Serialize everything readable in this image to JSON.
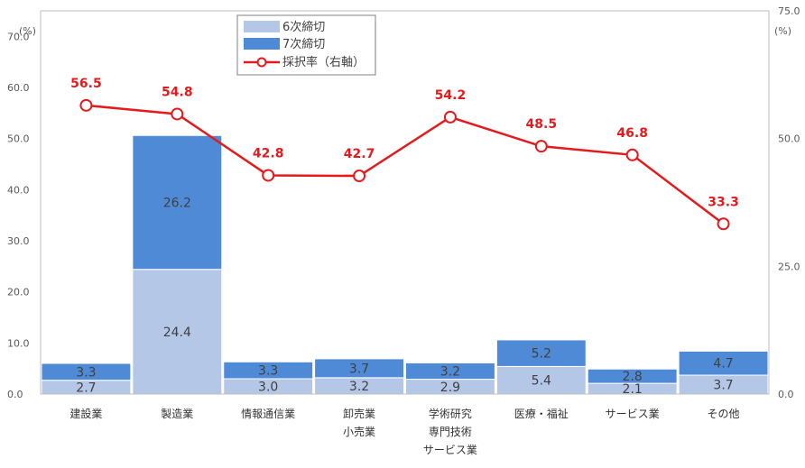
{
  "chart_data": {
    "type": "bar",
    "stacked": true,
    "categories": [
      [
        "建設業"
      ],
      [
        "製造業"
      ],
      [
        "情報通信業"
      ],
      [
        "卸売業",
        "小売業"
      ],
      [
        "学術研究",
        "専門技術",
        "サービス業"
      ],
      [
        "医療・福祉"
      ],
      [
        "サービス業"
      ],
      [
        "その他"
      ]
    ],
    "series": [
      {
        "name": "6次締切",
        "color": "#b4c7e7",
        "values": [
          2.7,
          24.4,
          3.0,
          3.2,
          2.9,
          5.4,
          2.1,
          3.7
        ]
      },
      {
        "name": "7次締切",
        "color": "#4f8ad6",
        "values": [
          3.3,
          26.2,
          3.3,
          3.7,
          3.2,
          5.2,
          2.8,
          4.7
        ]
      }
    ],
    "line_series": {
      "name": "採択率（右軸）",
      "color": "#e41a1c",
      "axis": "right",
      "values": [
        56.5,
        54.8,
        42.8,
        42.7,
        54.2,
        48.5,
        46.8,
        33.3
      ]
    },
    "y_left": {
      "unit": "(%)",
      "ylim": [
        0,
        75
      ],
      "ticks": [
        "0.0",
        "10.0",
        "20.0",
        "30.0",
        "40.0",
        "50.0",
        "60.0",
        "70.0"
      ]
    },
    "y_right": {
      "unit": "(%)",
      "ylim": [
        0,
        75
      ],
      "ticks": [
        "0.0",
        "25.0",
        "50.0",
        "75.0"
      ]
    },
    "legend": "top-center",
    "grid": false
  }
}
